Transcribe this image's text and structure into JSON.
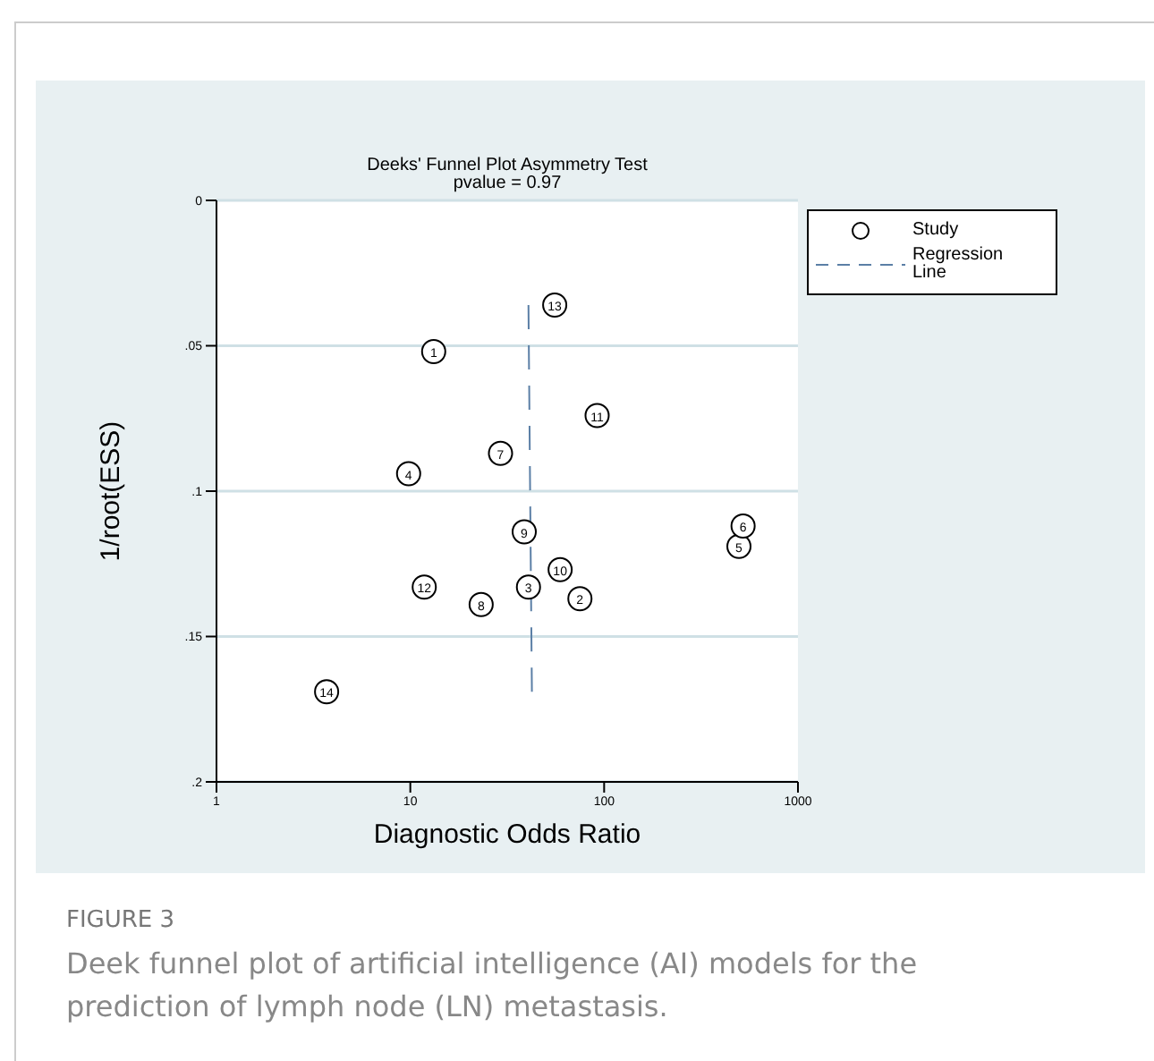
{
  "chart_data": {
    "type": "scatter",
    "title": "Deeks' Funnel Plot Asymmetry Test",
    "subtitle": "pvalue =  0.97",
    "xlabel": "Diagnostic Odds Ratio",
    "ylabel": "1/root(ESS)",
    "annotations": [
      "FIGURE 3",
      "Deek funnel plot of artificial intelligence (AI) models for the prediction of lymph node (LN) metastasis.",
      {
        "text": "1",
        "x": 13.2,
        "y": 0.052
      },
      {
        "text": "2",
        "x": 75,
        "y": 0.137
      },
      {
        "text": "3",
        "x": 40.7,
        "y": 0.133
      },
      {
        "text": "4",
        "x": 9.8,
        "y": 0.094
      },
      {
        "text": "5",
        "x": 496,
        "y": 0.119
      },
      {
        "text": "6",
        "x": 521,
        "y": 0.112
      },
      {
        "text": "7",
        "x": 29.2,
        "y": 0.087
      },
      {
        "text": "8",
        "x": 23.2,
        "y": 0.139
      },
      {
        "text": "9",
        "x": 38.7,
        "y": 0.114
      },
      {
        "text": "10",
        "x": 59.3,
        "y": 0.127
      },
      {
        "text": "11",
        "x": 92,
        "y": 0.074
      },
      {
        "text": "12",
        "x": 11.8,
        "y": 0.133
      },
      {
        "text": "13",
        "x": 55.6,
        "y": 0.036
      },
      {
        "text": "14",
        "x": 3.7,
        "y": 0.169
      }
    ],
    "log": "x",
    "xlim": [
      1,
      1000
    ],
    "xticks": [
      1,
      10,
      100,
      1000
    ],
    "ylim": [
      0.2,
      0
    ],
    "yticks": [
      {
        "value": 0,
        "label": "0"
      },
      {
        "value": 0.05,
        "label": ".05"
      },
      {
        "value": 0.1,
        "label": ".1"
      },
      {
        "value": 0.15,
        "label": ".15"
      },
      {
        "value": 0.2,
        "label": ".2"
      }
    ],
    "grid": "y",
    "legend": "top right",
    "series": [
      {
        "name": "Study",
        "color": "#000000",
        "marker": "circle",
        "x": [
          13.2,
          75,
          40.7,
          9.8,
          496,
          521,
          29.2,
          23.2,
          38.7,
          59.3,
          92,
          11.8,
          55.6,
          3.7
        ],
        "values": [
          0.052,
          0.137,
          0.133,
          0.094,
          0.119,
          0.112,
          0.087,
          0.139,
          0.114,
          0.127,
          0.074,
          0.133,
          0.036,
          0.169
        ]
      },
      {
        "name": "Regression Line",
        "type": "line",
        "color": "#5b7fa6",
        "marker": "none",
        "line_style": "dashed",
        "x": [
          40.7,
          42.4
        ],
        "values": [
          0.036,
          0.169
        ]
      }
    ]
  }
}
